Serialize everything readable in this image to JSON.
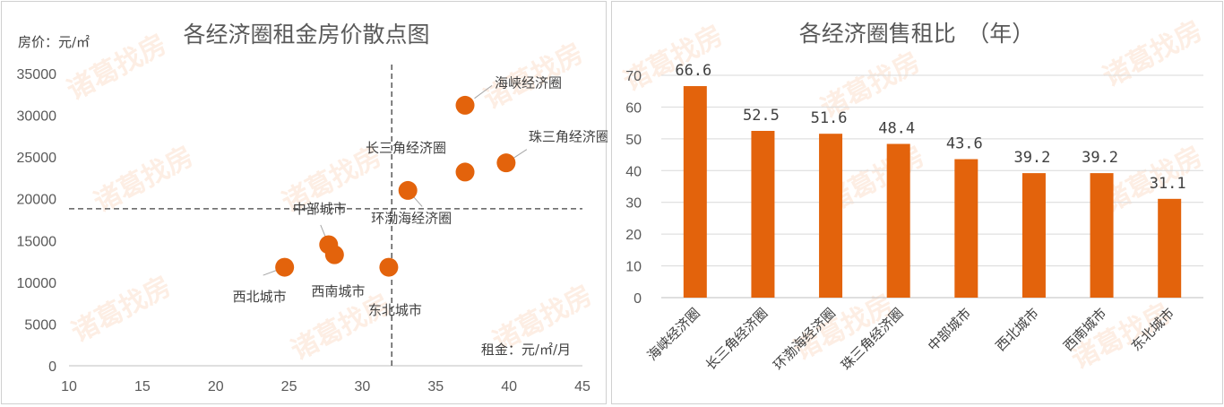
{
  "accent_color": "#e3630c",
  "watermark": "诸葛找房",
  "chart_data": [
    {
      "type": "scatter",
      "title": "各经济圈租金房价散点图",
      "ylabel": "房价：元/㎡",
      "xlabel": "租金：元/㎡/月",
      "xlim": [
        10,
        45
      ],
      "ylim": [
        0,
        35000
      ],
      "x_ticks": [
        10,
        15,
        20,
        25,
        30,
        35,
        40,
        45
      ],
      "y_ticks": [
        0,
        5000,
        10000,
        15000,
        20000,
        25000,
        30000,
        35000
      ],
      "grid": false,
      "reference_lines": {
        "x": 32.0,
        "y": 18800
      },
      "points": [
        {
          "label": "海峡经济圈",
          "x": 37.0,
          "y": 31200
        },
        {
          "label": "珠三角经济圈",
          "x": 39.8,
          "y": 24300
        },
        {
          "label": "长三角经济圈",
          "x": 37.0,
          "y": 23200
        },
        {
          "label": "环渤海经济圈",
          "x": 33.1,
          "y": 21000
        },
        {
          "label": "中部城市",
          "x": 27.7,
          "y": 14500
        },
        {
          "label": "西南城市",
          "x": 28.1,
          "y": 13300
        },
        {
          "label": "西北城市",
          "x": 24.7,
          "y": 11800
        },
        {
          "label": "东北城市",
          "x": 31.8,
          "y": 11800
        }
      ]
    },
    {
      "type": "bar",
      "title": "各经济圈售租比　（年）",
      "categories": [
        "海峡经济圈",
        "长三角经济圈",
        "环渤海经济圈",
        "珠三角经济圈",
        "中部城市",
        "西北城市",
        "西南城市",
        "东北城市"
      ],
      "values": [
        66.6,
        52.5,
        51.6,
        48.4,
        43.6,
        39.2,
        39.2,
        31.1
      ],
      "value_labels": [
        "66.6",
        "52.5",
        "51.6",
        "48.4",
        "43.6",
        "39.2",
        "39.2",
        "31.1"
      ],
      "ylim": [
        0,
        70
      ],
      "y_ticks": [
        0,
        10,
        20,
        30,
        40,
        50,
        60,
        70
      ],
      "grid": true
    }
  ]
}
